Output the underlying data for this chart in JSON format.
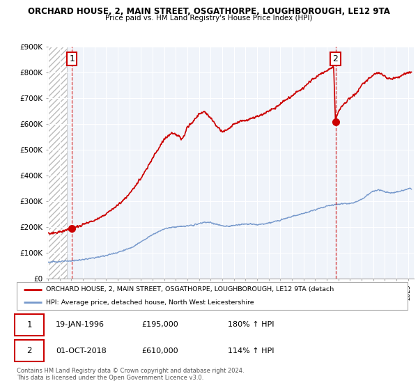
{
  "title_line1": "ORCHARD HOUSE, 2, MAIN STREET, OSGATHORPE, LOUGHBOROUGH, LE12 9TA",
  "title_line2": "Price paid vs. HM Land Registry's House Price Index (HPI)",
  "xlim_start": 1994.0,
  "xlim_end": 2025.5,
  "ylim_min": 0,
  "ylim_max": 900000,
  "ytick_values": [
    0,
    100000,
    200000,
    300000,
    400000,
    500000,
    600000,
    700000,
    800000,
    900000
  ],
  "ytick_labels": [
    "£0",
    "£100K",
    "£200K",
    "£300K",
    "£400K",
    "£500K",
    "£600K",
    "£700K",
    "£800K",
    "£900K"
  ],
  "sale1_year": 1996.05,
  "sale1_price": 195000,
  "sale2_year": 2018.75,
  "sale2_price": 610000,
  "sale1_label": "1",
  "sale2_label": "2",
  "line_color_red": "#cc0000",
  "line_color_blue": "#7799cc",
  "grid_color": "#cccccc",
  "hatch_end_year": 1995.6,
  "legend_line1": "ORCHARD HOUSE, 2, MAIN STREET, OSGATHORPE, LOUGHBOROUGH, LE12 9TA (detach",
  "legend_line2": "HPI: Average price, detached house, North West Leicestershire",
  "table_row1": [
    "1",
    "19-JAN-1996",
    "£195,000",
    "180% ↑ HPI"
  ],
  "table_row2": [
    "2",
    "01-OCT-2018",
    "£610,000",
    "114% ↑ HPI"
  ],
  "footnote": "Contains HM Land Registry data © Crown copyright and database right 2024.\nThis data is licensed under the Open Government Licence v3.0.",
  "dashed_line1_x": 1996.05,
  "dashed_line2_x": 2018.75,
  "hpi_years": [
    1994.0,
    1994.5,
    1995.0,
    1995.5,
    1996.0,
    1996.5,
    1997.0,
    1997.5,
    1998.0,
    1998.5,
    1999.0,
    1999.5,
    2000.0,
    2000.5,
    2001.0,
    2001.5,
    2002.0,
    2002.5,
    2003.0,
    2003.5,
    2004.0,
    2004.5,
    2005.0,
    2005.5,
    2006.0,
    2006.5,
    2007.0,
    2007.5,
    2008.0,
    2008.5,
    2009.0,
    2009.5,
    2010.0,
    2010.5,
    2011.0,
    2011.5,
    2012.0,
    2012.5,
    2013.0,
    2013.5,
    2014.0,
    2014.5,
    2015.0,
    2015.5,
    2016.0,
    2016.5,
    2017.0,
    2017.5,
    2018.0,
    2018.5,
    2019.0,
    2019.5,
    2020.0,
    2020.5,
    2021.0,
    2021.5,
    2022.0,
    2022.5,
    2023.0,
    2023.5,
    2024.0,
    2024.5,
    2025.0
  ],
  "hpi_prices": [
    65000,
    66000,
    67000,
    68000,
    70000,
    72000,
    75000,
    78000,
    82000,
    86000,
    91000,
    97000,
    103000,
    110000,
    118000,
    130000,
    143000,
    158000,
    172000,
    183000,
    194000,
    199000,
    202000,
    203000,
    205000,
    208000,
    214000,
    220000,
    218000,
    212000,
    205000,
    203000,
    207000,
    211000,
    213000,
    212000,
    210000,
    212000,
    216000,
    222000,
    229000,
    236000,
    242000,
    248000,
    254000,
    261000,
    268000,
    275000,
    282000,
    287000,
    290000,
    292000,
    293000,
    298000,
    308000,
    325000,
    340000,
    345000,
    338000,
    333000,
    336000,
    342000,
    350000
  ],
  "red_years": [
    1994.0,
    1994.5,
    1995.0,
    1995.5,
    1996.0,
    1996.5,
    1997.0,
    1997.5,
    1998.0,
    1998.5,
    1999.0,
    1999.5,
    2000.0,
    2000.5,
    2001.0,
    2001.5,
    2002.0,
    2002.5,
    2003.0,
    2003.5,
    2004.0,
    2004.25,
    2004.5,
    2004.75,
    2005.0,
    2005.25,
    2005.5,
    2005.75,
    2006.0,
    2006.5,
    2007.0,
    2007.5,
    2008.0,
    2008.5,
    2009.0,
    2009.5,
    2010.0,
    2010.5,
    2011.0,
    2011.5,
    2012.0,
    2012.5,
    2013.0,
    2013.5,
    2014.0,
    2014.5,
    2015.0,
    2015.5,
    2016.0,
    2016.5,
    2017.0,
    2017.5,
    2018.0,
    2018.3,
    2018.6,
    2018.75,
    2019.0,
    2019.5,
    2020.0,
    2020.5,
    2021.0,
    2021.5,
    2022.0,
    2022.5,
    2023.0,
    2023.5,
    2024.0,
    2024.5,
    2025.0
  ],
  "red_prices": [
    175000,
    178000,
    182000,
    188000,
    195000,
    202000,
    210000,
    218000,
    228000,
    238000,
    252000,
    268000,
    285000,
    305000,
    328000,
    358000,
    392000,
    428000,
    468000,
    505000,
    542000,
    550000,
    560000,
    565000,
    560000,
    555000,
    545000,
    555000,
    590000,
    610000,
    640000,
    650000,
    625000,
    595000,
    570000,
    580000,
    600000,
    610000,
    615000,
    622000,
    628000,
    638000,
    650000,
    662000,
    678000,
    695000,
    710000,
    725000,
    742000,
    762000,
    780000,
    795000,
    805000,
    815000,
    820000,
    610000,
    650000,
    680000,
    700000,
    720000,
    750000,
    770000,
    790000,
    800000,
    785000,
    775000,
    780000,
    790000,
    800000
  ]
}
